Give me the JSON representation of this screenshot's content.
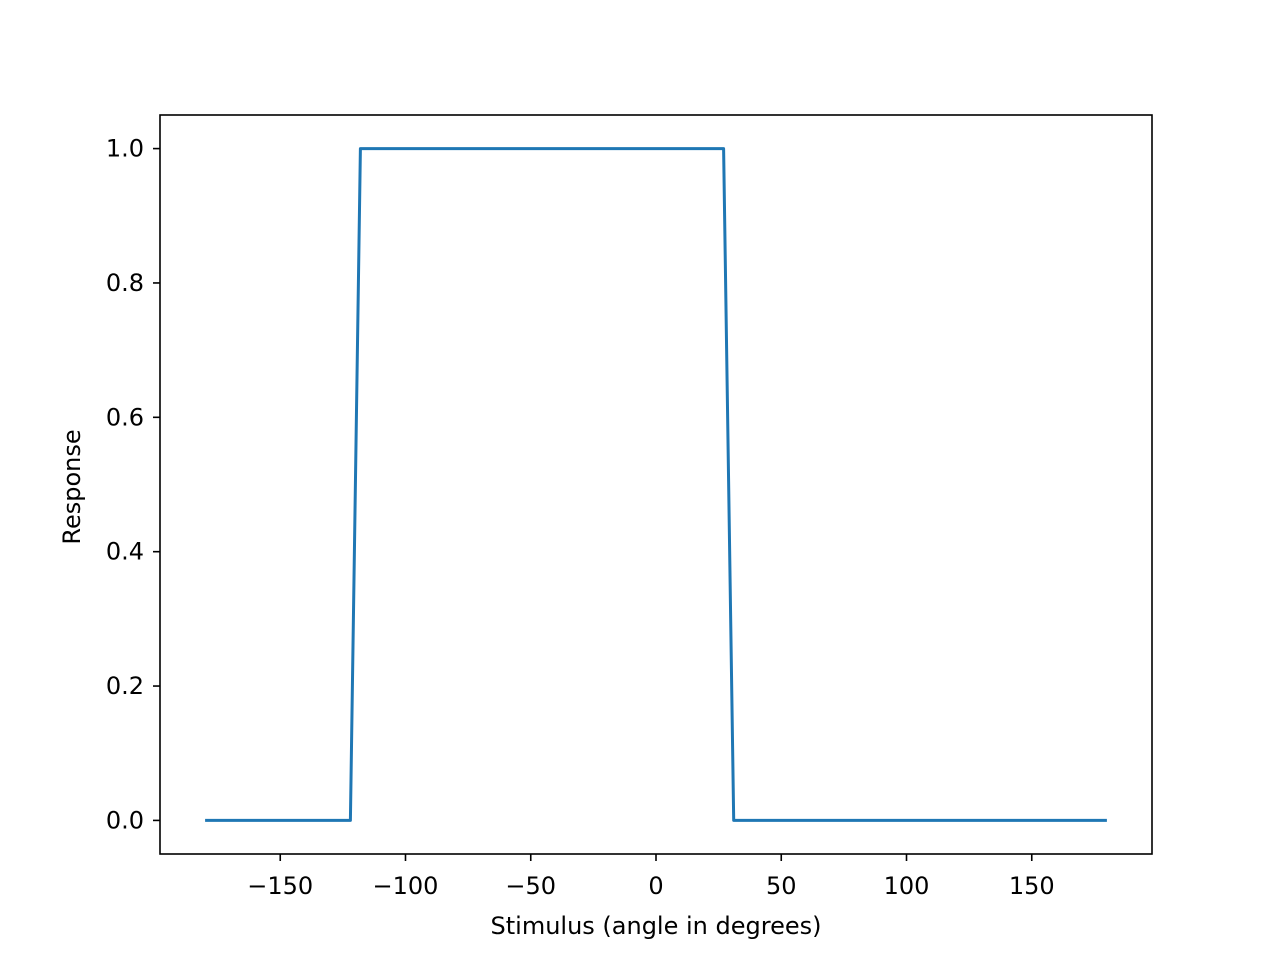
{
  "chart_data": {
    "type": "line",
    "title": "",
    "xlabel": "Stimulus (angle in degrees)",
    "ylabel": "Response",
    "xlim": [
      -198,
      198
    ],
    "ylim": [
      -0.05,
      1.05
    ],
    "grid": false,
    "legend": "none",
    "x_ticks": [
      {
        "value": -150,
        "label": "−150"
      },
      {
        "value": -100,
        "label": "−100"
      },
      {
        "value": -50,
        "label": "−50"
      },
      {
        "value": 0,
        "label": "0"
      },
      {
        "value": 50,
        "label": "50"
      },
      {
        "value": 100,
        "label": "100"
      },
      {
        "value": 150,
        "label": "150"
      }
    ],
    "y_ticks": [
      {
        "value": 0.0,
        "label": "0.0"
      },
      {
        "value": 0.2,
        "label": "0.2"
      },
      {
        "value": 0.4,
        "label": "0.4"
      },
      {
        "value": 0.6,
        "label": "0.6"
      },
      {
        "value": 0.8,
        "label": "0.8"
      },
      {
        "value": 1.0,
        "label": "1.0"
      }
    ],
    "series": [
      {
        "color": "#1f77b4",
        "x": [
          -180,
          -122,
          -118,
          27,
          31,
          180
        ],
        "y": [
          0,
          0,
          1,
          1,
          0,
          0
        ]
      }
    ]
  }
}
